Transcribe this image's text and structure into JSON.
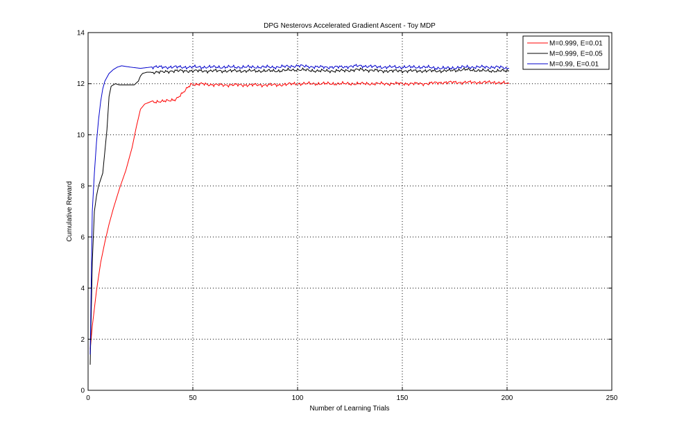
{
  "chart_data": {
    "type": "line",
    "title": "DPG Nesterovs Accelerated Gradient Ascent - Toy MDP",
    "xlabel": "Number of Learning Trials",
    "ylabel": "Cumulative Reward",
    "xlim": [
      0,
      250
    ],
    "ylim": [
      0,
      14
    ],
    "x_ticks": [
      0,
      50,
      100,
      150,
      200,
      250
    ],
    "y_ticks": [
      0,
      2,
      4,
      6,
      8,
      10,
      12,
      14
    ],
    "x_tick_labels": [
      "0",
      "50",
      "100",
      "150",
      "200",
      "250"
    ],
    "y_tick_labels": [
      "0",
      "2",
      "4",
      "6",
      "8",
      "10",
      "12",
      "14"
    ],
    "grid": true,
    "grid_style": "dotted",
    "legend_position": "top-right",
    "series": [
      {
        "name": "M=0.999, E=0.01",
        "color": "#ff0000",
        "points": [
          [
            1,
            1.6
          ],
          [
            2,
            2.5
          ],
          [
            3,
            3.2
          ],
          [
            4,
            3.9
          ],
          [
            6,
            5.0
          ],
          [
            8,
            5.8
          ],
          [
            10,
            6.5
          ],
          [
            12,
            7.1
          ],
          [
            15,
            7.9
          ],
          [
            18,
            8.6
          ],
          [
            21,
            9.5
          ],
          [
            23,
            10.3
          ],
          [
            25,
            11.0
          ],
          [
            27,
            11.2
          ],
          [
            30,
            11.3
          ],
          [
            33,
            11.3
          ],
          [
            36,
            11.3
          ],
          [
            39,
            11.35
          ],
          [
            42,
            11.4
          ],
          [
            45,
            11.6
          ],
          [
            47,
            11.8
          ],
          [
            49,
            12.0
          ],
          [
            52,
            11.95
          ],
          [
            55,
            12.0
          ],
          [
            60,
            11.95
          ],
          [
            70,
            11.95
          ],
          [
            80,
            11.95
          ],
          [
            90,
            11.95
          ],
          [
            100,
            12.0
          ],
          [
            110,
            12.0
          ],
          [
            120,
            12.0
          ],
          [
            130,
            12.0
          ],
          [
            140,
            12.0
          ],
          [
            150,
            12.0
          ],
          [
            160,
            12.0
          ],
          [
            170,
            12.05
          ],
          [
            180,
            12.05
          ],
          [
            190,
            12.05
          ],
          [
            195,
            12.05
          ],
          [
            201,
            12.0
          ]
        ]
      },
      {
        "name": "M=0.999, E=0.05",
        "color": "#000000",
        "points": [
          [
            1,
            1.0
          ],
          [
            2,
            5.0
          ],
          [
            3,
            7.0
          ],
          [
            4,
            7.6
          ],
          [
            5,
            8.0
          ],
          [
            7,
            8.5
          ],
          [
            9,
            10.2
          ],
          [
            10,
            11.5
          ],
          [
            11,
            11.9
          ],
          [
            13,
            12.0
          ],
          [
            15,
            11.95
          ],
          [
            17,
            11.95
          ],
          [
            20,
            11.95
          ],
          [
            22,
            11.95
          ],
          [
            24,
            12.1
          ],
          [
            25,
            12.3
          ],
          [
            26,
            12.4
          ],
          [
            28,
            12.45
          ],
          [
            30,
            12.45
          ],
          [
            35,
            12.45
          ],
          [
            40,
            12.5
          ],
          [
            45,
            12.5
          ],
          [
            50,
            12.5
          ],
          [
            60,
            12.5
          ],
          [
            70,
            12.5
          ],
          [
            80,
            12.5
          ],
          [
            90,
            12.5
          ],
          [
            100,
            12.55
          ],
          [
            110,
            12.5
          ],
          [
            120,
            12.5
          ],
          [
            130,
            12.55
          ],
          [
            140,
            12.5
          ],
          [
            150,
            12.5
          ],
          [
            160,
            12.5
          ],
          [
            170,
            12.5
          ],
          [
            180,
            12.55
          ],
          [
            190,
            12.5
          ],
          [
            195,
            12.5
          ],
          [
            201,
            12.5
          ]
        ]
      },
      {
        "name": "M=0.99, E=0.01",
        "color": "#0000cc",
        "points": [
          [
            1,
            1.4
          ],
          [
            2,
            7.0
          ],
          [
            3,
            8.5
          ],
          [
            4,
            9.7
          ],
          [
            5,
            10.6
          ],
          [
            6,
            11.3
          ],
          [
            7,
            11.8
          ],
          [
            8,
            12.1
          ],
          [
            10,
            12.4
          ],
          [
            12,
            12.55
          ],
          [
            14,
            12.65
          ],
          [
            16,
            12.7
          ],
          [
            20,
            12.65
          ],
          [
            25,
            12.6
          ],
          [
            30,
            12.65
          ],
          [
            40,
            12.65
          ],
          [
            50,
            12.65
          ],
          [
            60,
            12.65
          ],
          [
            70,
            12.65
          ],
          [
            80,
            12.65
          ],
          [
            90,
            12.65
          ],
          [
            100,
            12.7
          ],
          [
            110,
            12.65
          ],
          [
            120,
            12.65
          ],
          [
            130,
            12.7
          ],
          [
            140,
            12.65
          ],
          [
            150,
            12.65
          ],
          [
            160,
            12.65
          ],
          [
            170,
            12.6
          ],
          [
            180,
            12.65
          ],
          [
            190,
            12.65
          ],
          [
            195,
            12.65
          ],
          [
            201,
            12.6
          ]
        ]
      }
    ]
  }
}
